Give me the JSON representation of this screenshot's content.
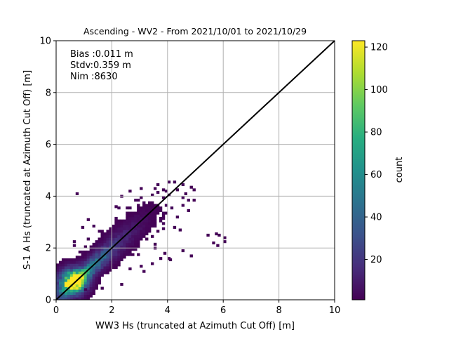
{
  "chart_data": {
    "type": "heatmap",
    "title": "Ascending - WV2 - From 2021/10/01 to 2021/10/29",
    "xlabel": "WW3 Hs (truncated at Azimuth Cut Off) [m]",
    "ylabel": "S-1 A Hs (truncated at Azimuth Cut Off) [m]",
    "xlim": [
      0,
      10
    ],
    "ylim": [
      0,
      10
    ],
    "x_ticks": [
      "0",
      "2",
      "4",
      "6",
      "8",
      "10"
    ],
    "y_ticks": [
      "0",
      "2",
      "4",
      "6",
      "8",
      "10"
    ],
    "grid": true,
    "annotations": [
      "Bias :0.011 m",
      "Stdv:0.359 m",
      "Nim :8630"
    ],
    "reference_line": {
      "x": [
        0,
        10
      ],
      "y": [
        0,
        10
      ],
      "color": "#000000"
    },
    "bin_width": 0.1,
    "total_count": 8630,
    "colorbar": {
      "label": "count",
      "min": 1,
      "max": 123,
      "ticks": [
        "20",
        "40",
        "60",
        "80",
        "100",
        "120"
      ],
      "tick_values": [
        20,
        40,
        60,
        80,
        100,
        120
      ],
      "colormap": "viridis"
    },
    "density": {
      "model": "approximate 2D histogram concentrated along y = x",
      "peak_x": 0.6,
      "peak_y": 0.7,
      "peak_count": 123
    },
    "outliers": [
      [
        0.7,
        4.05
      ],
      [
        4.6,
        4.05
      ],
      [
        3.0,
        4.25
      ],
      [
        3.5,
        4.25
      ],
      [
        3.9,
        4.15
      ],
      [
        5.4,
        2.45
      ],
      [
        5.6,
        2.15
      ],
      [
        5.7,
        2.5
      ],
      [
        5.8,
        2.45
      ],
      [
        5.75,
        2.05
      ],
      [
        6.0,
        2.35
      ],
      [
        6.0,
        2.2
      ],
      [
        4.5,
        1.85
      ],
      [
        4.8,
        1.65
      ],
      [
        3.7,
        1.55
      ],
      [
        4.0,
        1.55
      ],
      [
        4.05,
        1.5
      ],
      [
        3.85,
        1.75
      ],
      [
        3.5,
        1.95
      ],
      [
        3.4,
        1.35
      ],
      [
        3.0,
        1.25
      ],
      [
        2.6,
        1.15
      ],
      [
        4.2,
        2.75
      ],
      [
        4.4,
        2.65
      ],
      [
        4.3,
        3.15
      ],
      [
        2.1,
        3.55
      ],
      [
        2.3,
        3.95
      ],
      [
        2.6,
        4.15
      ],
      [
        1.1,
        3.05
      ],
      [
        0.9,
        2.75
      ],
      [
        0.6,
        2.05
      ],
      [
        1.0,
        0.35
      ],
      [
        1.6,
        0.4
      ],
      [
        2.3,
        0.55
      ],
      [
        3.1,
        1.05
      ]
    ]
  }
}
